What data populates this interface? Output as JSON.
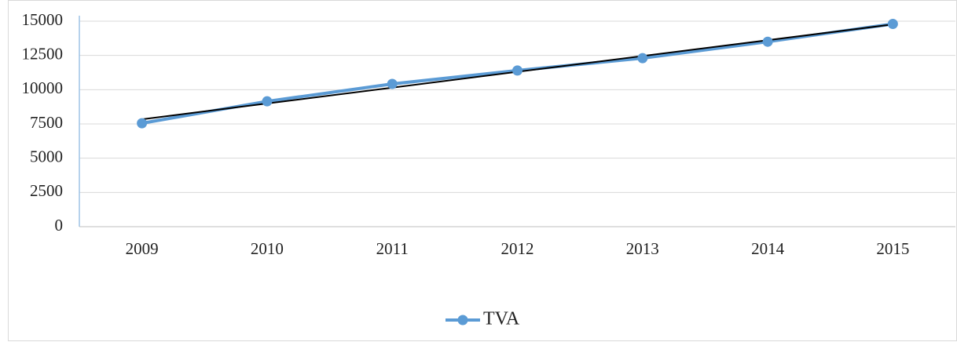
{
  "chart_data": {
    "type": "line",
    "categories": [
      "2009",
      "2010",
      "2011",
      "2012",
      "2013",
      "2014",
      "2015"
    ],
    "series": [
      {
        "name": "TVA",
        "color": "#5b9bd5",
        "values": [
          7550,
          9150,
          10420,
          11400,
          12300,
          13500,
          14800
        ]
      }
    ],
    "ylim": [
      0,
      15000
    ],
    "yticks": [
      0,
      2500,
      5000,
      7500,
      10000,
      12500,
      15000
    ],
    "grid": true,
    "legend": "bottom",
    "trendline": {
      "kind": "linear",
      "color": "#000000"
    }
  }
}
